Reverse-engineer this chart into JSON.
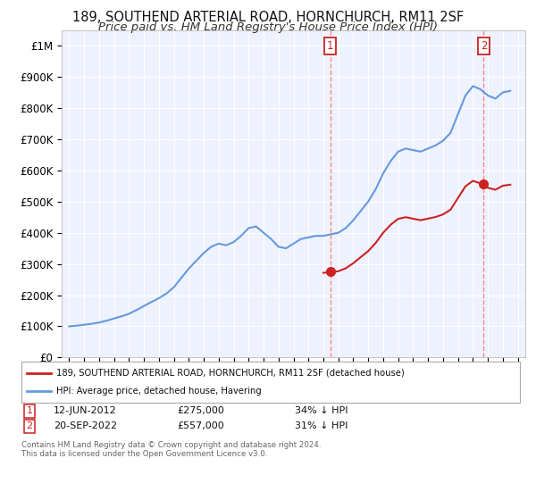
{
  "title": "189, SOUTHEND ARTERIAL ROAD, HORNCHURCH, RM11 2SF",
  "subtitle": "Price paid vs. HM Land Registry's House Price Index (HPI)",
  "title_fontsize": 10.5,
  "subtitle_fontsize": 9.5,
  "background_color": "#ffffff",
  "plot_bg_color": "#eef2ff",
  "grid_color": "#ffffff",
  "hpi_color": "#6699dd",
  "price_color": "#cc2222",
  "marker_color": "#cc2222",
  "dashed_color": "#ff8888",
  "ylabel_fontsize": 8.5,
  "xlabel_fontsize": 7.5,
  "legend_label_hpi": "HPI: Average price, detached house, Havering",
  "legend_label_price": "189, SOUTHEND ARTERIAL ROAD, HORNCHURCH, RM11 2SF (detached house)",
  "sale1_label": "1",
  "sale1_date": "12-JUN-2012",
  "sale1_price": "£275,000",
  "sale1_note": "34% ↓ HPI",
  "sale2_label": "2",
  "sale2_date": "20-SEP-2022",
  "sale2_price": "£557,000",
  "sale2_note": "31% ↓ HPI",
  "sale1_x": 2012.45,
  "sale1_y": 275000,
  "sale2_x": 2022.72,
  "sale2_y": 557000,
  "footer": "Contains HM Land Registry data © Crown copyright and database right 2024.\nThis data is licensed under the Open Government Licence v3.0.",
  "ylim": [
    0,
    1050000
  ],
  "xlim": [
    1994.5,
    2025.5
  ],
  "yticks": [
    0,
    100000,
    200000,
    300000,
    400000,
    500000,
    600000,
    700000,
    800000,
    900000,
    1000000
  ],
  "ytick_labels": [
    "£0",
    "£100K",
    "£200K",
    "£300K",
    "£400K",
    "£500K",
    "£600K",
    "£700K",
    "£800K",
    "£900K",
    "£1M"
  ],
  "xticks": [
    1995,
    1996,
    1997,
    1998,
    1999,
    2000,
    2001,
    2002,
    2003,
    2004,
    2005,
    2006,
    2007,
    2008,
    2009,
    2010,
    2011,
    2012,
    2013,
    2014,
    2015,
    2016,
    2017,
    2018,
    2019,
    2020,
    2021,
    2022,
    2023,
    2024,
    2025
  ]
}
